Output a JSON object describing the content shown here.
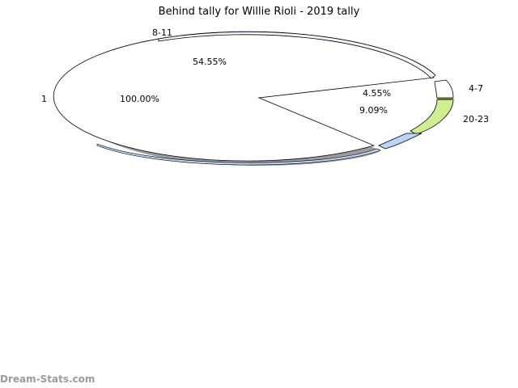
{
  "chart_data": {
    "type": "pie",
    "title": "Behind tally for Willie Rioli - 2019 tally",
    "slices": [
      {
        "label": "1",
        "percent_label": "100.00%",
        "value": 100.0,
        "color": "#ffffff"
      },
      {
        "label": "8-11",
        "percent_label": "54.55%",
        "value": 54.55,
        "color": "#ffffff"
      },
      {
        "label": "4-7",
        "percent_label": "4.55%",
        "value": 4.55,
        "color": "#ffffff"
      },
      {
        "label": "20-23",
        "percent_label": "9.09%",
        "value": 9.09,
        "color": "#cfee8f"
      },
      {
        "label": "",
        "percent_label": "",
        "value": 4.0,
        "color": "#bcd5f6"
      }
    ]
  },
  "watermark": "Dream-Stats.com"
}
